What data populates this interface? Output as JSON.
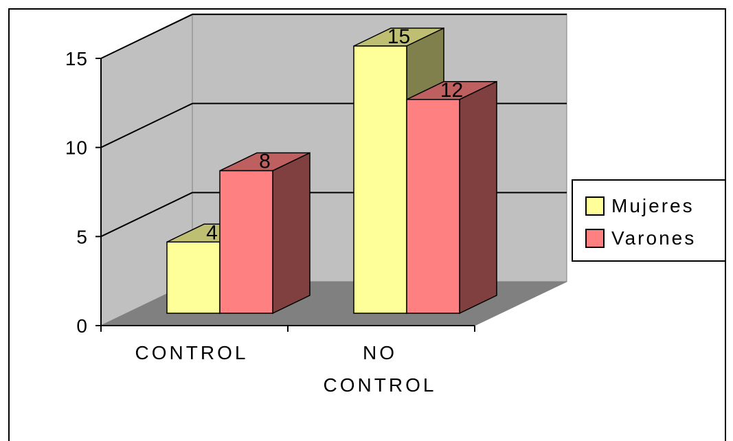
{
  "chart_data": {
    "type": "bar",
    "categories": [
      [
        "CONTROL"
      ],
      [
        "NO",
        "CONTROL"
      ]
    ],
    "series": [
      {
        "name": "Mujeres",
        "values": [
          4,
          15
        ],
        "color": "#ffff99"
      },
      {
        "name": "Varones",
        "values": [
          8,
          12
        ],
        "color": "#ff8080"
      }
    ],
    "ylim": [
      0,
      15
    ],
    "yticks": [
      "0",
      "5",
      "10",
      "15"
    ],
    "data_labels": [
      [
        "4",
        "15"
      ],
      [
        "8",
        "12"
      ]
    ],
    "legend_position": "right",
    "grid": true,
    "wall_color": "#c0c0c0",
    "floor_color": "#808080"
  }
}
